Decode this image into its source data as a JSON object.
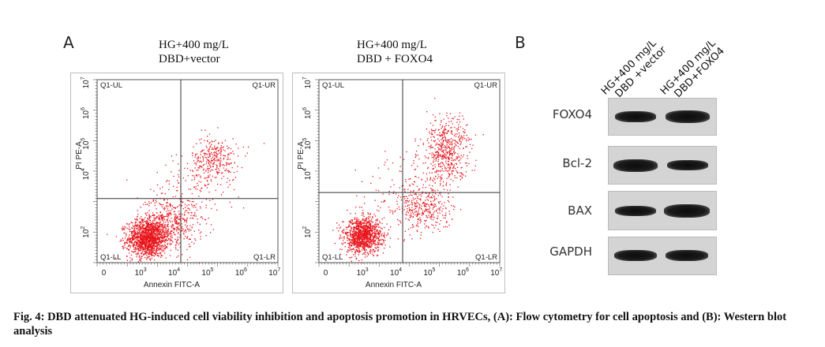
{
  "panel_a_letter": "A",
  "panel_b_letter": "B",
  "chart_data": [
    {
      "type": "scatter",
      "title_lines": [
        "HG+400 mg/L",
        "DBD+vector"
      ],
      "xlabel": "Annexin FITC-A",
      "ylabel": "PI PE-A",
      "quadrant_labels": {
        "ul": "Q1-UL",
        "ur": "Q1-UR",
        "ll": "Q1-LL",
        "lr": "Q1-LR"
      },
      "x_ticks": [
        {
          "base": "0",
          "exp": ""
        },
        {
          "base": "10",
          "exp": "3"
        },
        {
          "base": "10",
          "exp": "4"
        },
        {
          "base": "10",
          "exp": "5"
        },
        {
          "base": "10",
          "exp": "6"
        },
        {
          "base": "10",
          "exp": "7"
        }
      ],
      "y_ticks": [
        {
          "base": "10",
          "exp": "2"
        },
        {
          "base": "10",
          "exp": "4"
        },
        {
          "base": "10",
          "exp": "5"
        },
        {
          "base": "10",
          "exp": "6"
        },
        {
          "base": "10",
          "exp": "7"
        }
      ],
      "gate_x": 4.3,
      "gate_y": 3.3,
      "clusters": [
        {
          "x": 3.3,
          "y": 2.0,
          "sx": 0.3,
          "sy": 0.3,
          "n": 1400
        },
        {
          "x": 3.9,
          "y": 2.5,
          "sx": 0.45,
          "sy": 0.45,
          "n": 500
        },
        {
          "x": 5.3,
          "y": 4.6,
          "sx": 0.35,
          "sy": 0.35,
          "n": 300
        },
        {
          "x": 4.6,
          "y": 3.6,
          "sx": 0.6,
          "sy": 0.7,
          "n": 150
        }
      ]
    },
    {
      "type": "scatter",
      "title_lines": [
        "HG+400 mg/L",
        "DBD + FOXO4"
      ],
      "xlabel": "Annexin FITC-A",
      "ylabel": "PI PE-A",
      "quadrant_labels": {
        "ul": "Q1-UL",
        "ur": "Q1-UR",
        "ll": "Q1-LL",
        "lr": "Q1-LR"
      },
      "x_ticks": [
        {
          "base": "0",
          "exp": ""
        },
        {
          "base": "10",
          "exp": "3"
        },
        {
          "base": "10",
          "exp": "4"
        },
        {
          "base": "10",
          "exp": "5"
        },
        {
          "base": "10",
          "exp": "6"
        },
        {
          "base": "10",
          "exp": "7"
        }
      ],
      "y_ticks": [
        {
          "base": "10",
          "exp": "2"
        },
        {
          "base": "10",
          "exp": "4"
        },
        {
          "base": "10",
          "exp": "5"
        },
        {
          "base": "10",
          "exp": "6"
        },
        {
          "base": "10",
          "exp": "7"
        }
      ],
      "gate_x": 4.3,
      "gate_y": 3.5,
      "clusters": [
        {
          "x": 3.1,
          "y": 2.1,
          "sx": 0.28,
          "sy": 0.3,
          "n": 1200
        },
        {
          "x": 5.0,
          "y": 3.0,
          "sx": 0.4,
          "sy": 0.35,
          "n": 300
        },
        {
          "x": 5.6,
          "y": 4.9,
          "sx": 0.35,
          "sy": 0.55,
          "n": 550
        },
        {
          "x": 4.4,
          "y": 3.4,
          "sx": 0.6,
          "sy": 0.7,
          "n": 150
        }
      ]
    }
  ],
  "western_blot": {
    "lanes": [
      {
        "lines": [
          "HG+400 mg/L",
          "DBD +vector"
        ]
      },
      {
        "lines": [
          "HG+400 mg/L",
          "DBD+FOXO4"
        ]
      }
    ],
    "proteins": [
      {
        "name": "FOXO4",
        "band_intensities": [
          0.85,
          1.0
        ]
      },
      {
        "name": "Bcl-2",
        "band_intensities": [
          1.0,
          0.75
        ]
      },
      {
        "name": "BAX",
        "band_intensities": [
          0.75,
          1.0
        ]
      },
      {
        "name": "GAPDH",
        "band_intensities": [
          0.9,
          0.9
        ]
      }
    ]
  },
  "caption": "Fig. 4: DBD attenuated HG-induced cell viability inhibition and apoptosis promotion in HRVECs, (A): Flow cytometry for cell apoptosis and (B): Western blot analysis"
}
